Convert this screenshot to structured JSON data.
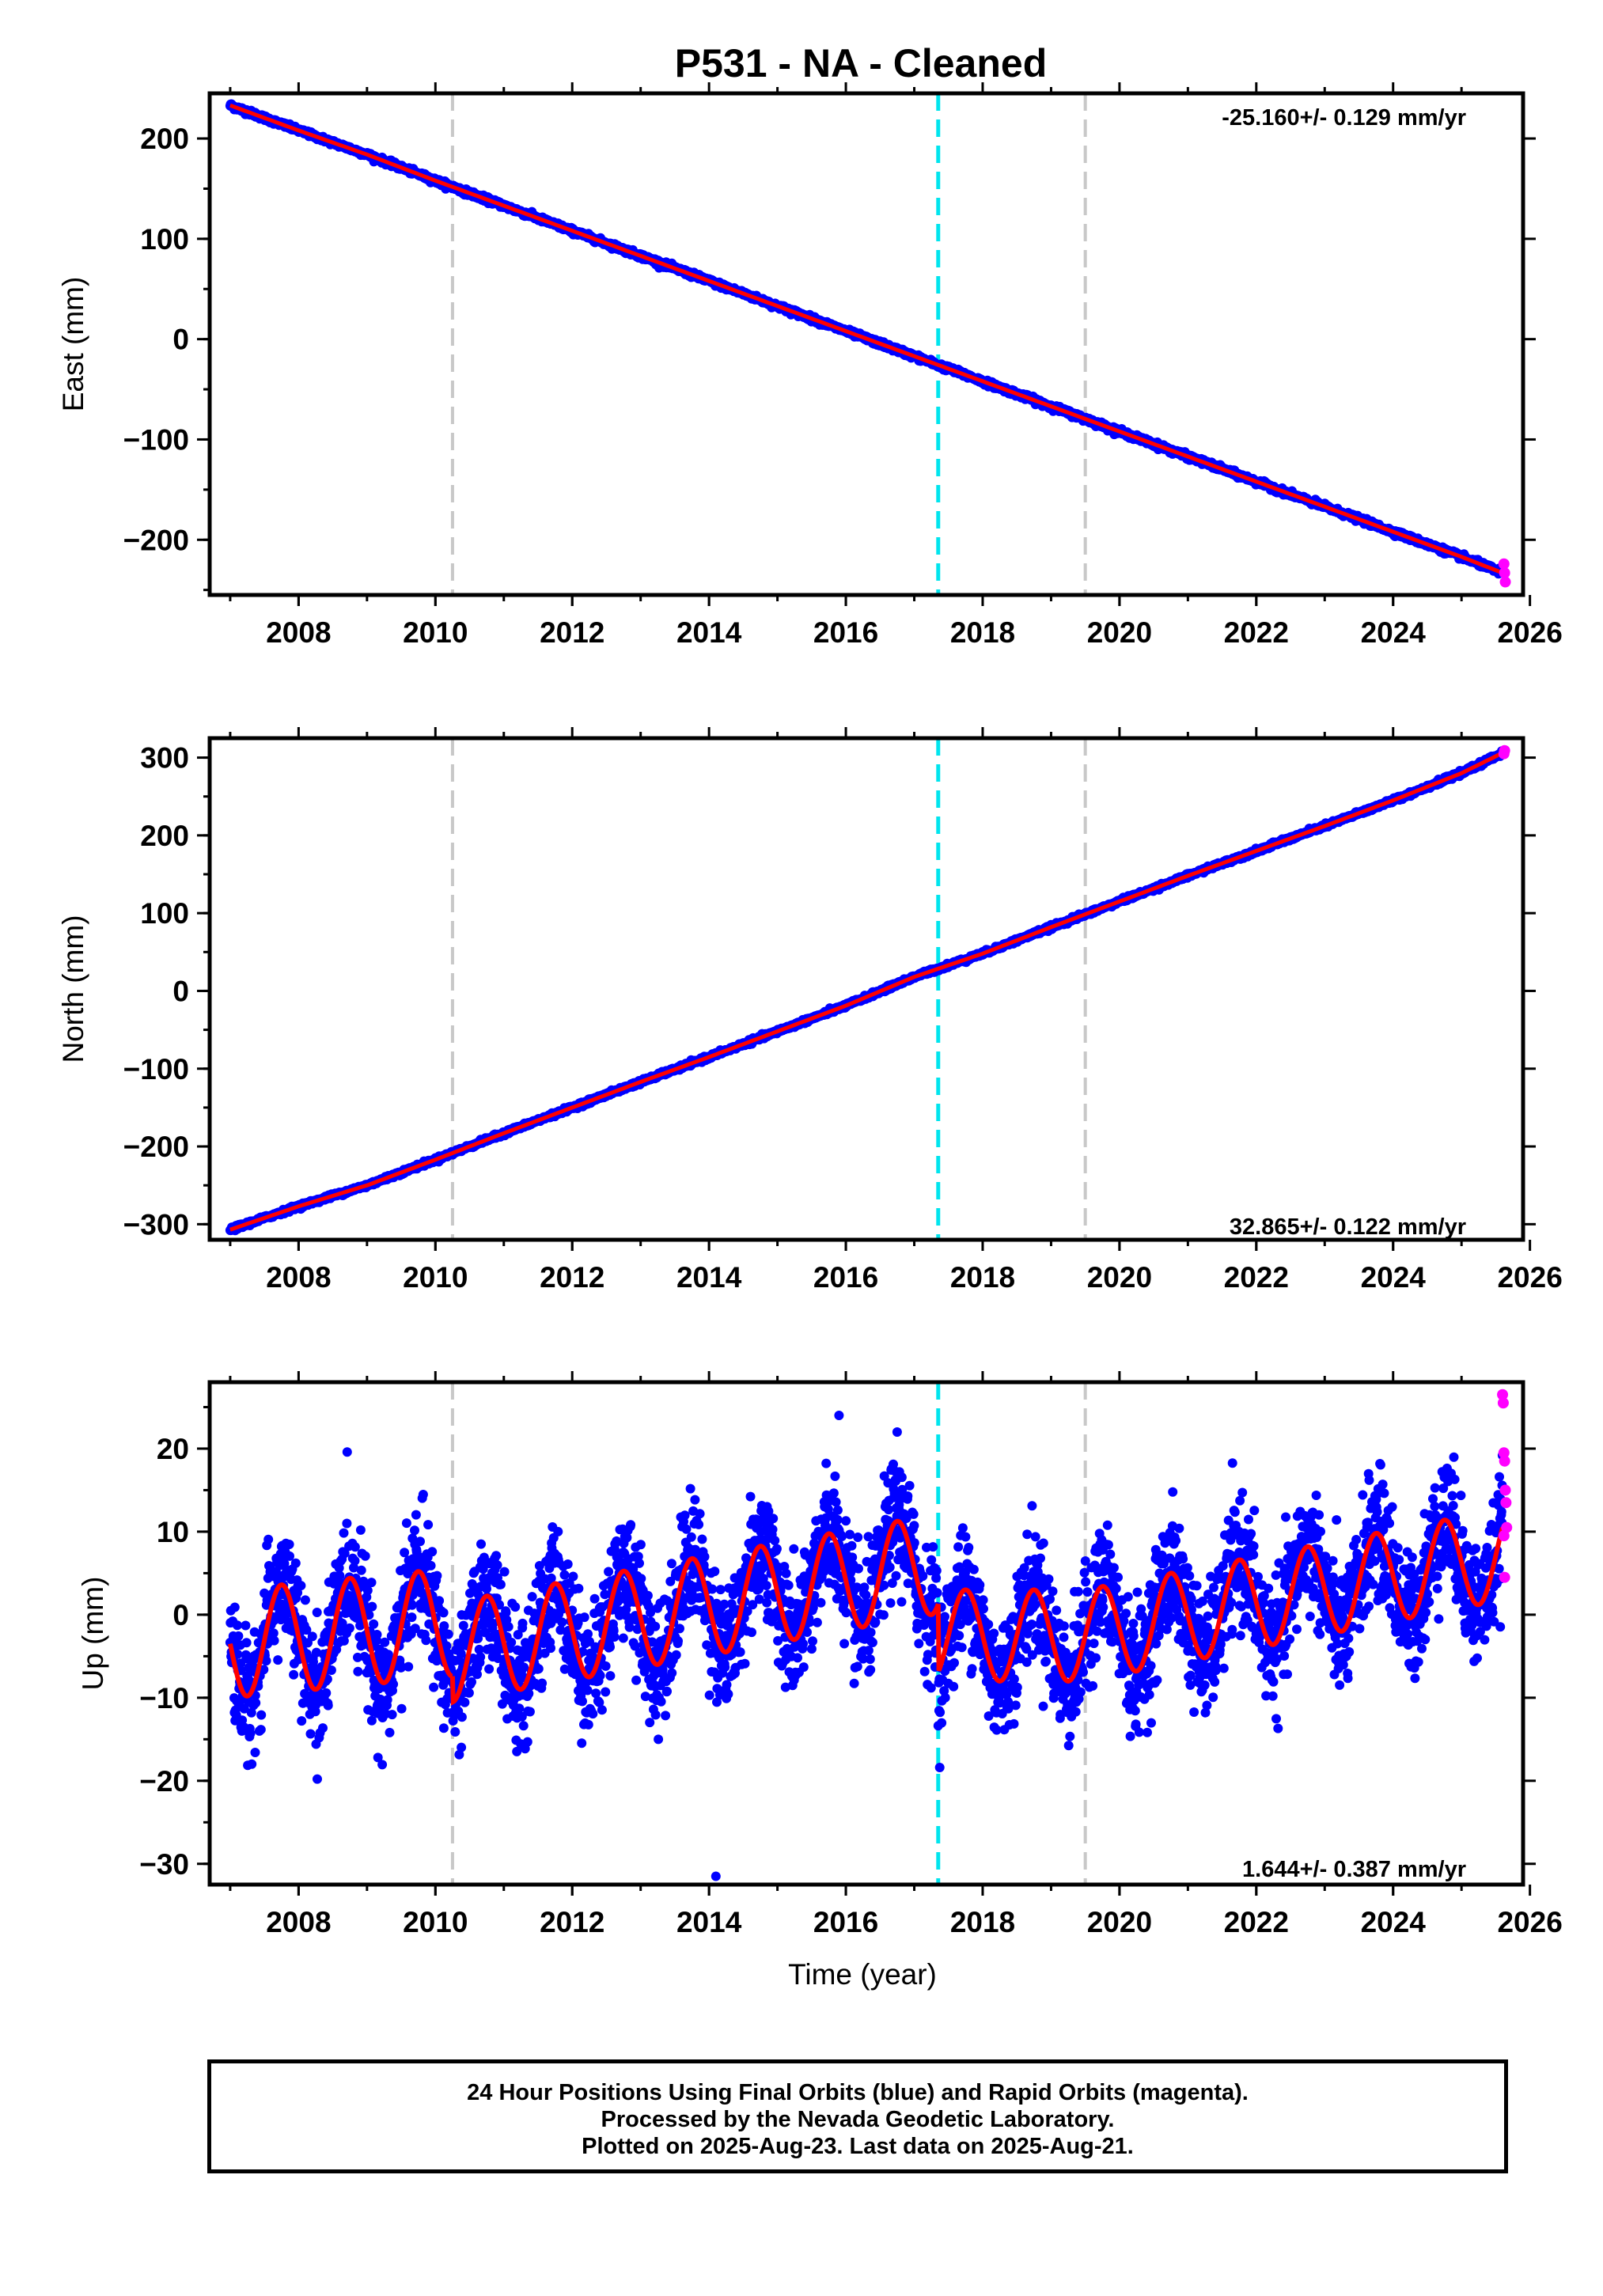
{
  "title": "P531  - NA - Cleaned",
  "x_axis_label": "Time (year)",
  "footer": {
    "line1": "24 Hour Positions Using Final Orbits (blue) and Rapid Orbits (magenta).",
    "line2": "Processed by the Nevada Geodetic Laboratory.",
    "line3": "Plotted on 2025-Aug-23. Last data on 2025-Aug-21."
  },
  "colors": {
    "final_orbits": "#0000ff",
    "rapid_orbits": "#ff00ff",
    "model": "#ff0000",
    "equipment_change": "#c8c8c8",
    "earthquake": "#00e5ee"
  },
  "chart_data": [
    {
      "type": "scatter",
      "component": "east",
      "ylabel": "East (mm)",
      "rate_label": "-25.160+/- 0.129 mm/yr",
      "xlim": [
        2006.7,
        2025.9
      ],
      "ylim": [
        -255,
        245
      ],
      "xticks": [
        2008,
        2010,
        2012,
        2014,
        2016,
        2018,
        2020,
        2022,
        2024,
        2026
      ],
      "yticks": [
        -200,
        -100,
        0,
        100,
        200
      ],
      "grid": false,
      "series": [
        {
          "name": "Final Orbits",
          "color": "blue",
          "x": [
            2007.0,
            2008.0,
            2009.0,
            2010.0,
            2011.0,
            2012.0,
            2013.0,
            2014.0,
            2015.0,
            2016.0,
            2017.0,
            2018.0,
            2019.0,
            2020.0,
            2021.0,
            2022.0,
            2023.0,
            2024.0,
            2025.0,
            2025.6
          ],
          "y": [
            233,
            208,
            184,
            158,
            133,
            108,
            83,
            58,
            33,
            8,
            -17,
            -42,
            -67,
            -92,
            -117,
            -142,
            -167,
            -192,
            -217,
            -233
          ]
        },
        {
          "name": "Rapid Orbits",
          "color": "magenta",
          "x": [
            2025.62,
            2025.63,
            2025.64
          ],
          "y": [
            -224,
            -233,
            -242
          ]
        },
        {
          "name": "Model",
          "color": "red",
          "x": [
            2007.0,
            2025.6
          ],
          "y": [
            233,
            -233
          ]
        }
      ],
      "vlines": [
        {
          "x": 2010.25,
          "kind": "equipment"
        },
        {
          "x": 2017.35,
          "kind": "earthquake"
        },
        {
          "x": 2019.5,
          "kind": "equipment"
        }
      ]
    },
    {
      "type": "scatter",
      "component": "north",
      "ylabel": "North (mm)",
      "rate_label": "32.865+/- 0.122 mm/yr",
      "xlim": [
        2006.7,
        2025.9
      ],
      "ylim": [
        -320,
        325
      ],
      "xticks": [
        2008,
        2010,
        2012,
        2014,
        2016,
        2018,
        2020,
        2022,
        2024,
        2026
      ],
      "yticks": [
        -300,
        -200,
        -100,
        0,
        100,
        200,
        300
      ],
      "grid": false,
      "series": [
        {
          "name": "Final Orbits",
          "color": "blue",
          "x": [
            2007.0,
            2008.0,
            2009.0,
            2010.0,
            2011.0,
            2012.0,
            2013.0,
            2014.0,
            2015.0,
            2016.0,
            2017.0,
            2018.0,
            2019.0,
            2020.0,
            2021.0,
            2022.0,
            2023.0,
            2024.0,
            2025.0,
            2025.6
          ],
          "y": [
            -307,
            -277,
            -250,
            -217,
            -183,
            -150,
            -117,
            -85,
            -52,
            -19,
            18,
            48,
            82,
            115,
            148,
            180,
            212,
            245,
            280,
            306
          ]
        },
        {
          "name": "Rapid Orbits",
          "color": "magenta",
          "x": [
            2025.62,
            2025.63
          ],
          "y": [
            305,
            309
          ]
        },
        {
          "name": "Model",
          "color": "red",
          "x": [
            2007.0,
            2025.6
          ],
          "y": [
            -307,
            306
          ]
        }
      ],
      "vlines": [
        {
          "x": 2010.25,
          "kind": "equipment"
        },
        {
          "x": 2017.35,
          "kind": "earthquake"
        },
        {
          "x": 2019.5,
          "kind": "equipment"
        }
      ]
    },
    {
      "type": "scatter",
      "component": "up",
      "ylabel": "Up (mm)",
      "rate_label": "1.644+/- 0.387 mm/yr",
      "xlim": [
        2006.7,
        2025.9
      ],
      "ylim": [
        -32.5,
        28
      ],
      "xticks": [
        2008,
        2010,
        2012,
        2014,
        2016,
        2018,
        2020,
        2022,
        2024,
        2026
      ],
      "yticks": [
        -30,
        -20,
        -10,
        0,
        10,
        20
      ],
      "grid": false,
      "seasonal_model": {
        "segments": [
          {
            "x": [
              2007.0,
              2010.25
            ],
            "offset": -3.5,
            "trend": 0.8,
            "amplitude": 6.5
          },
          {
            "x": [
              2010.25,
              2017.35
            ],
            "offset": -4.5,
            "trend": 1.5,
            "amplitude": 6.0
          },
          {
            "x": [
              2017.35,
              2019.5
            ],
            "offset": -2.5,
            "trend": 0.0,
            "amplitude": 5.5
          },
          {
            "x": [
              2019.5,
              2025.6
            ],
            "offset": -2.5,
            "trend": 1.6,
            "amplitude": 5.5
          }
        ],
        "phase_peak_year_fraction": 0.75
      },
      "outliers": [
        {
          "x": 2014.1,
          "y": -31.5
        },
        {
          "x": 2015.9,
          "y": 24
        },
        {
          "x": 2016.75,
          "y": 22
        }
      ],
      "series": [
        {
          "name": "Rapid Orbits",
          "color": "magenta",
          "x": [
            2025.6,
            2025.61,
            2025.62,
            2025.63,
            2025.64,
            2025.65,
            2025.66,
            2025.62,
            2025.63
          ],
          "y": [
            26.5,
            25.5,
            19.5,
            18.5,
            15.0,
            13.5,
            10.5,
            9.5,
            4.5
          ]
        }
      ],
      "vlines": [
        {
          "x": 2010.25,
          "kind": "equipment"
        },
        {
          "x": 2017.35,
          "kind": "earthquake"
        },
        {
          "x": 2019.5,
          "kind": "equipment"
        }
      ]
    }
  ]
}
